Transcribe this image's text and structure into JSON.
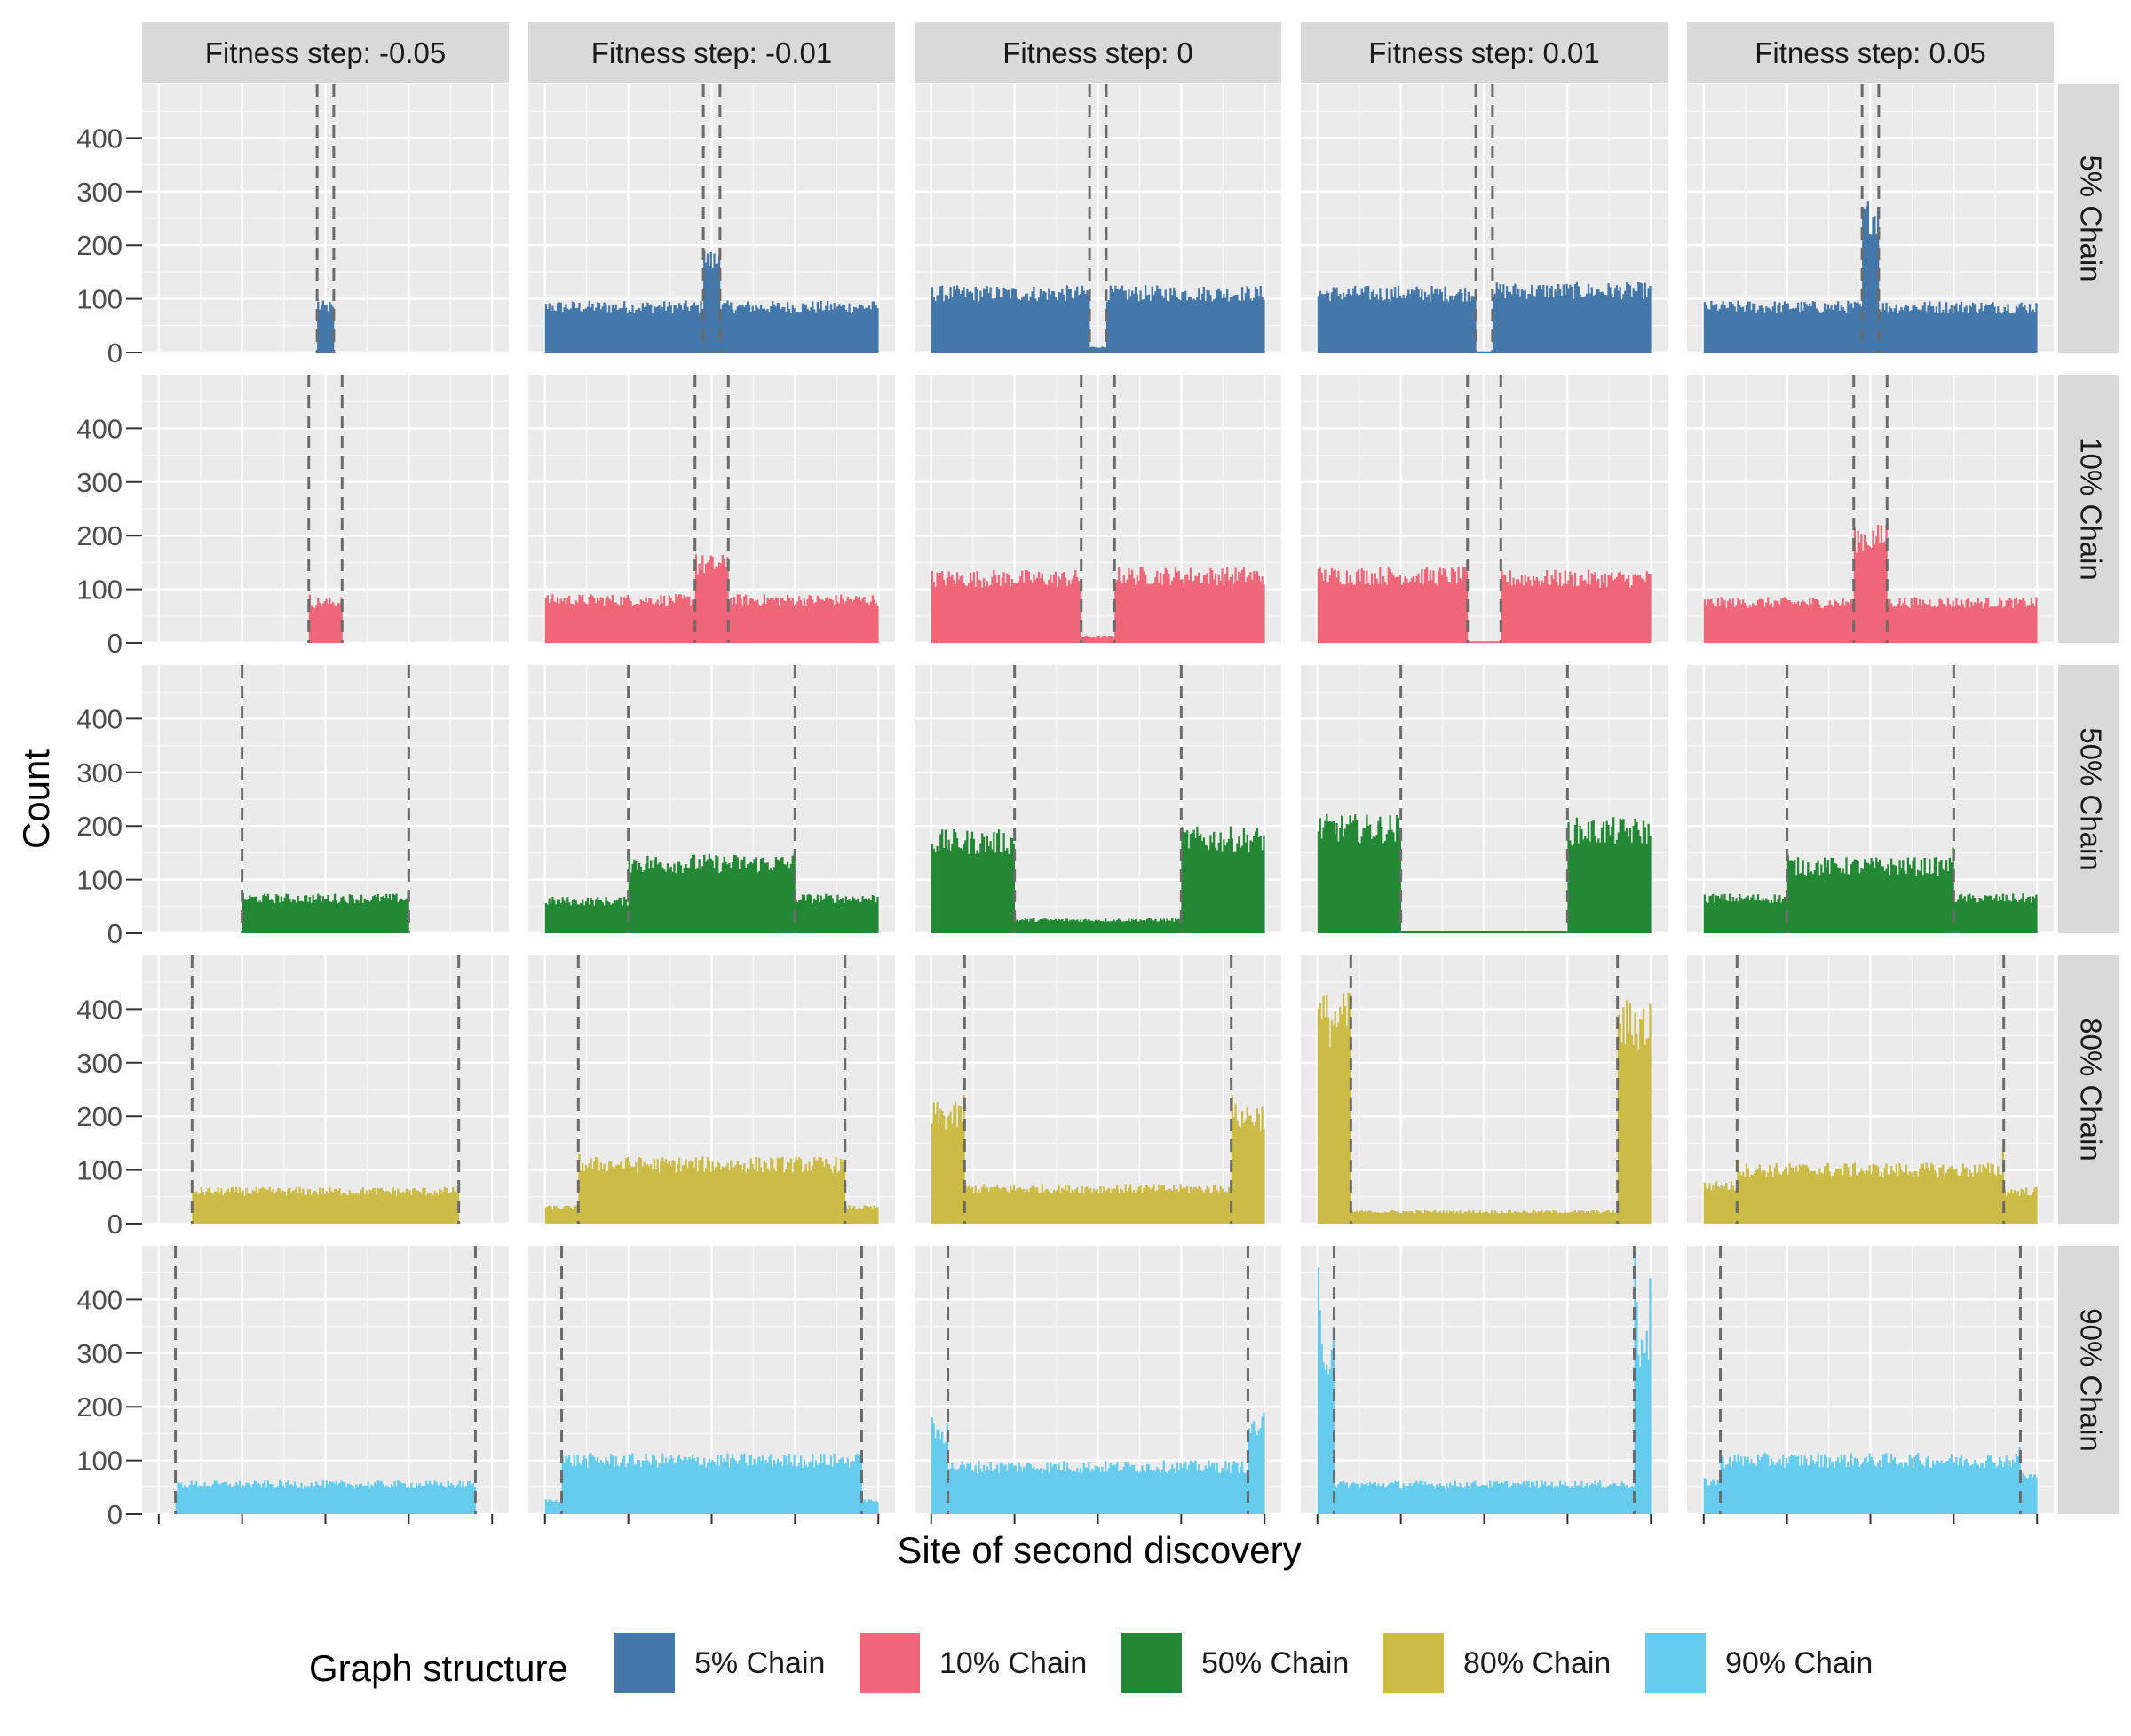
{
  "chart_data": {
    "type": "bar",
    "subtype": "faceted-histogram",
    "xlabel": "Site of second discovery",
    "ylabel": "Count",
    "ylim": [
      0,
      500
    ],
    "y_ticks": [
      0,
      100,
      200,
      300,
      400
    ],
    "x_ticks_labeled": false,
    "grid": true,
    "legend": {
      "title": "Graph structure",
      "placement": "bottom",
      "entries": [
        "5% Chain",
        "10% Chain",
        "50% Chain",
        "80% Chain",
        "90% Chain"
      ]
    },
    "column_facets": [
      "Fitness step: -0.05",
      "Fitness step: -0.01",
      "Fitness step: 0",
      "Fitness step: 0.01",
      "Fitness step: 0.05"
    ],
    "row_facets": [
      "5% Chain",
      "10% Chain",
      "50% Chain",
      "80% Chain",
      "90% Chain"
    ],
    "colors": {
      "5% Chain": "#4477aa",
      "10% Chain": "#ee6677",
      "50% Chain": "#228833",
      "80% Chain": "#ccbb44",
      "90% Chain": "#66ccee"
    },
    "x_domain": [
      -1.1,
      1.1
    ],
    "x_data_range": [
      -1,
      1
    ],
    "panels": [
      {
        "row": 0,
        "col": 0,
        "vlines": [
          -0.05,
          0.05
        ],
        "segments": [
          {
            "from": -0.05,
            "to": 0.05,
            "level": 85,
            "spike_left": 95,
            "spike_right": 85
          }
        ]
      },
      {
        "row": 0,
        "col": 1,
        "vlines": [
          -0.05,
          0.05
        ],
        "segments": [
          {
            "from": -1,
            "to": -0.05,
            "level": 85
          },
          {
            "from": -0.05,
            "to": 0.05,
            "level": 170,
            "spike_left": 190,
            "spike_right": 180
          },
          {
            "from": 0.05,
            "to": 1,
            "level": 85
          }
        ]
      },
      {
        "row": 0,
        "col": 2,
        "vlines": [
          -0.05,
          0.05
        ],
        "segments": [
          {
            "from": -1,
            "to": -0.05,
            "level": 110
          },
          {
            "from": -0.05,
            "to": 0.05,
            "level": 10
          },
          {
            "from": 0.05,
            "to": 1,
            "level": 110
          }
        ]
      },
      {
        "row": 0,
        "col": 3,
        "vlines": [
          -0.05,
          0.05
        ],
        "segments": [
          {
            "from": -1,
            "to": -0.05,
            "level": 110
          },
          {
            "from": -0.05,
            "to": 0.05,
            "level": 2
          },
          {
            "from": 0.05,
            "to": 1,
            "level": 115
          }
        ]
      },
      {
        "row": 0,
        "col": 4,
        "vlines": [
          -0.05,
          0.05
        ],
        "segments": [
          {
            "from": -1,
            "to": -0.05,
            "level": 85
          },
          {
            "from": -0.05,
            "to": 0.05,
            "level": 255,
            "spike_left": 270,
            "spike_right": 270
          },
          {
            "from": 0.05,
            "to": 1,
            "level": 85
          }
        ]
      },
      {
        "row": 1,
        "col": 0,
        "vlines": [
          -0.1,
          0.1
        ],
        "segments": [
          {
            "from": -0.1,
            "to": 0.1,
            "level": 75,
            "spike_left": 90,
            "spike_right": 85
          }
        ]
      },
      {
        "row": 1,
        "col": 1,
        "vlines": [
          -0.1,
          0.1
        ],
        "segments": [
          {
            "from": -1,
            "to": -0.1,
            "level": 80
          },
          {
            "from": -0.1,
            "to": 0.1,
            "level": 145,
            "spike_left": 165,
            "spike_right": 160
          },
          {
            "from": 0.1,
            "to": 1,
            "level": 80
          }
        ]
      },
      {
        "row": 1,
        "col": 2,
        "vlines": [
          -0.1,
          0.1
        ],
        "segments": [
          {
            "from": -1,
            "to": -0.1,
            "level": 120
          },
          {
            "from": -0.1,
            "to": 0.1,
            "level": 12
          },
          {
            "from": 0.1,
            "to": 1,
            "level": 125
          }
        ]
      },
      {
        "row": 1,
        "col": 3,
        "vlines": [
          -0.1,
          0.1
        ],
        "segments": [
          {
            "from": -1,
            "to": -0.1,
            "level": 125
          },
          {
            "from": -0.1,
            "to": 0.1,
            "level": 3
          },
          {
            "from": 0.1,
            "to": 1,
            "level": 120
          }
        ]
      },
      {
        "row": 1,
        "col": 4,
        "vlines": [
          -0.1,
          0.1
        ],
        "segments": [
          {
            "from": -1,
            "to": -0.1,
            "level": 75
          },
          {
            "from": -0.1,
            "to": 0.1,
            "level": 195,
            "spike_left": 215,
            "spike_right": 220
          },
          {
            "from": 0.1,
            "to": 1,
            "level": 75
          }
        ]
      },
      {
        "row": 2,
        "col": 0,
        "vlines": [
          -0.5,
          0.5
        ],
        "segments": [
          {
            "from": -0.5,
            "to": 0.5,
            "level": 65,
            "spike_left": 75,
            "spike_right": 80
          }
        ]
      },
      {
        "row": 2,
        "col": 1,
        "vlines": [
          -0.5,
          0.5
        ],
        "segments": [
          {
            "from": -1,
            "to": -0.5,
            "level": 60
          },
          {
            "from": -0.5,
            "to": 0.5,
            "level": 130,
            "spike_left": 150,
            "spike_right": 150
          },
          {
            "from": 0.5,
            "to": 1,
            "level": 65
          }
        ]
      },
      {
        "row": 2,
        "col": 2,
        "vlines": [
          -0.5,
          0.5
        ],
        "segments": [
          {
            "from": -1,
            "to": -0.5,
            "level": 170
          },
          {
            "from": -0.5,
            "to": 0.5,
            "level": 25
          },
          {
            "from": 0.5,
            "to": 1,
            "level": 175
          }
        ]
      },
      {
        "row": 2,
        "col": 3,
        "vlines": [
          -0.5,
          0.5
        ],
        "segments": [
          {
            "from": -1,
            "to": -0.5,
            "level": 195
          },
          {
            "from": -0.5,
            "to": 0.5,
            "level": 5
          },
          {
            "from": 0.5,
            "to": 1,
            "level": 190
          }
        ]
      },
      {
        "row": 2,
        "col": 4,
        "vlines": [
          -0.5,
          0.5
        ],
        "segments": [
          {
            "from": -1,
            "to": -0.5,
            "level": 65
          },
          {
            "from": -0.5,
            "to": 0.5,
            "level": 125,
            "spike_left": 145,
            "spike_right": 160
          },
          {
            "from": 0.5,
            "to": 1,
            "level": 65
          }
        ]
      },
      {
        "row": 3,
        "col": 0,
        "vlines": [
          -0.8,
          0.8
        ],
        "segments": [
          {
            "from": -0.8,
            "to": 0.8,
            "level": 60,
            "spike_left": 60,
            "spike_right": 70
          }
        ]
      },
      {
        "row": 3,
        "col": 1,
        "vlines": [
          -0.8,
          0.8
        ],
        "segments": [
          {
            "from": -1,
            "to": -0.8,
            "level": 30
          },
          {
            "from": -0.8,
            "to": 0.8,
            "level": 110,
            "spike_left": 130,
            "spike_right": 120
          },
          {
            "from": 0.8,
            "to": 1,
            "level": 30
          }
        ]
      },
      {
        "row": 3,
        "col": 2,
        "vlines": [
          -0.8,
          0.8
        ],
        "segments": [
          {
            "from": -1,
            "to": -0.8,
            "level": 200,
            "spike_right": 240
          },
          {
            "from": -0.8,
            "to": 0.8,
            "level": 65
          },
          {
            "from": 0.8,
            "to": 1,
            "level": 200,
            "spike_left": 240
          }
        ]
      },
      {
        "row": 3,
        "col": 3,
        "vlines": [
          -0.8,
          0.8
        ],
        "segments": [
          {
            "from": -1,
            "to": -0.8,
            "level": 380,
            "spike_left": 400,
            "spike_right": 430
          },
          {
            "from": -0.8,
            "to": 0.8,
            "level": 22
          },
          {
            "from": 0.8,
            "to": 1,
            "level": 370,
            "spike_left": 390,
            "spike_right": 410
          }
        ]
      },
      {
        "row": 3,
        "col": 4,
        "vlines": [
          -0.8,
          0.8
        ],
        "segments": [
          {
            "from": -1,
            "to": -0.8,
            "level": 70
          },
          {
            "from": -0.8,
            "to": 0.8,
            "level": 100,
            "spike_left": 120,
            "spike_right": 140
          },
          {
            "from": 0.8,
            "to": 1,
            "level": 60
          }
        ]
      },
      {
        "row": 4,
        "col": 0,
        "vlines": [
          -0.9,
          0.9
        ],
        "segments": [
          {
            "from": -0.9,
            "to": 0.9,
            "level": 55,
            "spike_left": 40,
            "spike_right": 50
          }
        ]
      },
      {
        "row": 4,
        "col": 1,
        "vlines": [
          -0.9,
          0.9
        ],
        "segments": [
          {
            "from": -1,
            "to": -0.9,
            "level": 25
          },
          {
            "from": -0.9,
            "to": 0.9,
            "level": 100,
            "spike_left": 110,
            "spike_right": 100
          },
          {
            "from": 0.9,
            "to": 1,
            "level": 25
          }
        ]
      },
      {
        "row": 4,
        "col": 2,
        "vlines": [
          -0.9,
          0.9
        ],
        "segments": [
          {
            "from": -1,
            "to": -0.9,
            "level": 150,
            "spike_left": 180,
            "spike_right": 170
          },
          {
            "from": -0.9,
            "to": 0.9,
            "level": 88
          },
          {
            "from": 0.9,
            "to": 1,
            "level": 160,
            "spike_left": 160,
            "spike_right": 190
          }
        ]
      },
      {
        "row": 4,
        "col": 3,
        "vlines": [
          -0.9,
          0.9
        ],
        "segments": [
          {
            "from": -1,
            "to": -0.9,
            "level": 300,
            "spike_left": 460,
            "spike_right": 350
          },
          {
            "from": -0.9,
            "to": 0.9,
            "level": 55
          },
          {
            "from": 0.9,
            "to": 1,
            "level": 300,
            "spike_left": 490,
            "spike_right": 440
          }
        ]
      },
      {
        "row": 4,
        "col": 4,
        "vlines": [
          -0.9,
          0.9
        ],
        "segments": [
          {
            "from": -1,
            "to": -0.9,
            "level": 60
          },
          {
            "from": -0.9,
            "to": 0.9,
            "level": 100,
            "spike_left": 110,
            "spike_right": 125
          },
          {
            "from": 0.9,
            "to": 1,
            "level": 70
          }
        ]
      }
    ]
  }
}
